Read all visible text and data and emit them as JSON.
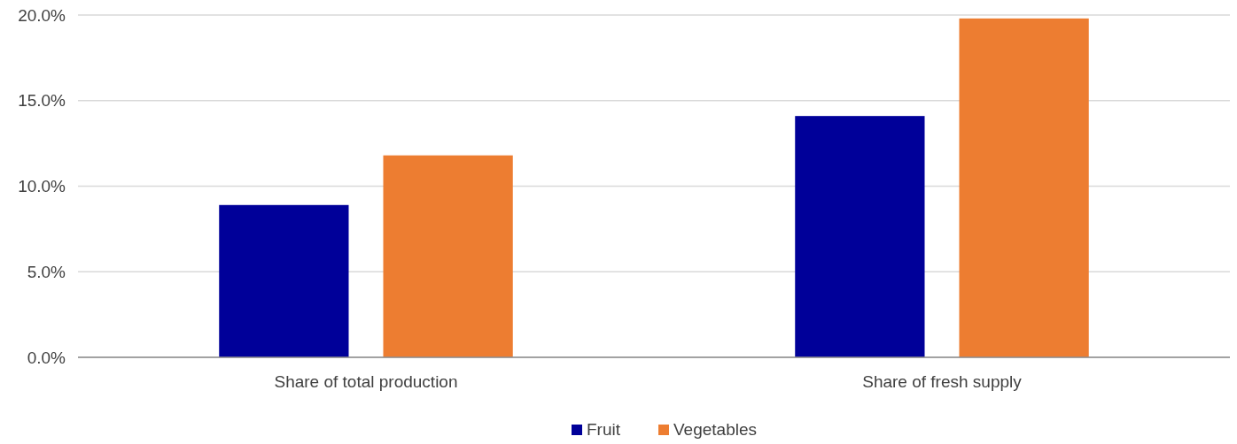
{
  "chart_data": {
    "type": "bar",
    "categories": [
      "Share of total production",
      "Share of fresh supply"
    ],
    "series": [
      {
        "name": "Fruit",
        "color": "#000099",
        "values": [
          8.9,
          14.1
        ]
      },
      {
        "name": "Vegetables",
        "color": "#ed7d31",
        "values": [
          11.8,
          19.8
        ]
      }
    ],
    "ylim": [
      0,
      20
    ],
    "yticks": [
      {
        "value": 0,
        "label": "0.0%"
      },
      {
        "value": 5,
        "label": "5.0%"
      },
      {
        "value": 10,
        "label": "10.0%"
      },
      {
        "value": 15,
        "label": "15.0%"
      },
      {
        "value": 20,
        "label": "20.0%"
      }
    ],
    "grid": "y",
    "legend": "bottom"
  }
}
